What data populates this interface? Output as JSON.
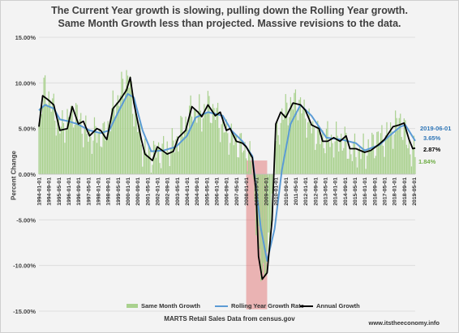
{
  "page": {
    "title_line1": "The Current Year growth is slowing, pulling down the Rolling Year growth.",
    "title_line2": "Same Month Growth less than projected. Massive revisions to the data.",
    "source": "MARTS Retail Sales Data from census.gov",
    "website": "www.itstheeconomy.info"
  },
  "colors": {
    "bar": "#a9d18e",
    "rolling": "#5b9bd5",
    "annual": "#000000",
    "recession": "#e06666",
    "label_rolling": "#2e75b6",
    "label_bar": "#70ad47"
  },
  "annotations": {
    "date": "2019-06-01",
    "rolling_value": "3.65%",
    "annual_value": "2.87%",
    "same_month_value": "1.84%"
  },
  "chart_data": {
    "type": "bar",
    "title": "",
    "xlabel": "",
    "ylabel": "Percent Change",
    "ylim": [
      -15,
      15
    ],
    "yticks": [
      "15.00%",
      "10.00%",
      "5.00%",
      "0.00%",
      "-5.00%",
      "-10.00%",
      "-15.00%"
    ],
    "x_tick_labels": [
      "1994-01-01",
      "1994-09-01",
      "1995-05-01",
      "1996-01-01",
      "1996-09-01",
      "1997-05-01",
      "1998-01-01",
      "1998-09-01",
      "1999-05-01",
      "2000-01-01",
      "2000-09-01",
      "2001-05-01",
      "2002-01-01",
      "2002-09-01",
      "2003-05-01",
      "2004-01-01",
      "2004-09-01",
      "2005-05-01",
      "2006-01-01",
      "2006-09-01",
      "2007-05-01",
      "2008-01-01",
      "2008-09-01",
      "2009-05-01",
      "2010-01-01",
      "2010-09-01",
      "2011-05-01",
      "2012-01-01",
      "2012-09-01",
      "2013-05-01",
      "2014-01-01",
      "2014-09-01",
      "2015-05-01",
      "2016-01-01",
      "2016-09-01",
      "2017-05-01",
      "2018-01-01",
      "2018-09-01",
      "2019-05-01"
    ],
    "x_start": "1994-01",
    "x_end": "2019-06",
    "grid": true,
    "legend_placement": "bottom",
    "shaded_region": [
      "2008-01",
      "2009-06"
    ],
    "series": [
      {
        "name": "Annual Growth",
        "type": "line",
        "points": [
          [
            "1994-01",
            5.2
          ],
          [
            "1994-04",
            8.6
          ],
          [
            "1994-08",
            8.2
          ],
          [
            "1995-01",
            7.6
          ],
          [
            "1995-06",
            4.8
          ],
          [
            "1995-12",
            5.0
          ],
          [
            "1996-04",
            7.4
          ],
          [
            "1996-09",
            5.5
          ],
          [
            "1997-01",
            5.8
          ],
          [
            "1997-06",
            4.2
          ],
          [
            "1997-12",
            5.0
          ],
          [
            "1998-03",
            4.8
          ],
          [
            "1998-08",
            3.8
          ],
          [
            "1999-01",
            7.2
          ],
          [
            "1999-06",
            8.0
          ],
          [
            "1999-12",
            9.2
          ],
          [
            "2000-03",
            10.6
          ],
          [
            "2000-06",
            7.8
          ],
          [
            "2000-12",
            3.8
          ],
          [
            "2001-03",
            2.2
          ],
          [
            "2001-09",
            1.5
          ],
          [
            "2002-01",
            3.0
          ],
          [
            "2002-09",
            2.2
          ],
          [
            "2003-02",
            2.5
          ],
          [
            "2003-06",
            4.0
          ],
          [
            "2003-12",
            4.8
          ],
          [
            "2004-05",
            7.4
          ],
          [
            "2004-10",
            6.8
          ],
          [
            "2005-01",
            6.3
          ],
          [
            "2005-06",
            7.6
          ],
          [
            "2005-12",
            6.4
          ],
          [
            "2006-04",
            6.8
          ],
          [
            "2006-09",
            4.8
          ],
          [
            "2006-12",
            5.0
          ],
          [
            "2007-05",
            3.6
          ],
          [
            "2007-10",
            3.4
          ],
          [
            "2008-01",
            3.0
          ],
          [
            "2008-06",
            1.8
          ],
          [
            "2008-09",
            -2.0
          ],
          [
            "2008-11",
            -9.0
          ],
          [
            "2009-02",
            -11.5
          ],
          [
            "2009-06",
            -10.8
          ],
          [
            "2009-10",
            -5.0
          ],
          [
            "2010-01",
            5.5
          ],
          [
            "2010-05",
            6.8
          ],
          [
            "2010-09",
            6.2
          ],
          [
            "2011-03",
            7.8
          ],
          [
            "2011-09",
            7.6
          ],
          [
            "2012-01",
            7.0
          ],
          [
            "2012-06",
            5.4
          ],
          [
            "2012-12",
            5.0
          ],
          [
            "2013-03",
            3.6
          ],
          [
            "2013-07",
            3.6
          ],
          [
            "2013-12",
            4.0
          ],
          [
            "2014-05",
            3.6
          ],
          [
            "2014-10",
            4.2
          ],
          [
            "2015-01",
            2.8
          ],
          [
            "2015-06",
            2.8
          ],
          [
            "2016-01",
            2.4
          ],
          [
            "2016-06",
            2.6
          ],
          [
            "2016-12",
            3.2
          ],
          [
            "2017-05",
            3.8
          ],
          [
            "2017-12",
            5.2
          ],
          [
            "2018-05",
            5.4
          ],
          [
            "2018-09",
            5.6
          ],
          [
            "2019-01",
            3.8
          ],
          [
            "2019-04",
            2.8
          ],
          [
            "2019-06",
            2.87
          ]
        ]
      },
      {
        "name": "Rolling Year Growth Rate",
        "type": "line",
        "points": [
          [
            "1994-01",
            7.0
          ],
          [
            "1994-06",
            7.6
          ],
          [
            "1995-01",
            7.2
          ],
          [
            "1995-06",
            6.0
          ],
          [
            "1996-01",
            5.8
          ],
          [
            "1996-08",
            5.5
          ],
          [
            "1997-06",
            4.8
          ],
          [
            "1998-03",
            4.5
          ],
          [
            "1998-10",
            4.8
          ],
          [
            "1999-06",
            7.0
          ],
          [
            "2000-01",
            8.8
          ],
          [
            "2000-06",
            8.4
          ],
          [
            "2001-01",
            4.8
          ],
          [
            "2001-08",
            2.5
          ],
          [
            "2002-06",
            2.6
          ],
          [
            "2003-04",
            3.0
          ],
          [
            "2004-01",
            4.2
          ],
          [
            "2004-08",
            6.2
          ],
          [
            "2005-06",
            6.8
          ],
          [
            "2006-06",
            6.4
          ],
          [
            "2007-01",
            4.8
          ],
          [
            "2007-10",
            3.6
          ],
          [
            "2008-06",
            2.0
          ],
          [
            "2009-01",
            -6.0
          ],
          [
            "2009-06",
            -9.5
          ],
          [
            "2009-12",
            -6.0
          ],
          [
            "2010-06",
            0.5
          ],
          [
            "2011-01",
            5.5
          ],
          [
            "2011-09",
            7.6
          ],
          [
            "2012-06",
            6.4
          ],
          [
            "2013-01",
            5.0
          ],
          [
            "2013-06",
            4.0
          ],
          [
            "2014-06",
            3.8
          ],
          [
            "2015-06",
            3.4
          ],
          [
            "2016-01",
            2.6
          ],
          [
            "2017-01",
            3.2
          ],
          [
            "2017-09",
            4.2
          ],
          [
            "2018-06",
            5.2
          ],
          [
            "2018-10",
            5.4
          ],
          [
            "2019-06",
            3.65
          ]
        ]
      },
      {
        "name": "Same Month Growth",
        "type": "bar",
        "points": [
          [
            "1994-01",
            6.0
          ],
          [
            "1994-06",
            9.5
          ],
          [
            "1995-01",
            7.0
          ],
          [
            "1995-06",
            5.0
          ],
          [
            "1996-01",
            6.0
          ],
          [
            "1996-06",
            7.0
          ],
          [
            "1997-01",
            5.0
          ],
          [
            "1997-06",
            4.0
          ],
          [
            "1998-01",
            4.5
          ],
          [
            "1998-06",
            4.0
          ],
          [
            "1999-01",
            7.0
          ],
          [
            "1999-06",
            8.5
          ],
          [
            "2000-01",
            11.0
          ],
          [
            "2000-06",
            7.0
          ],
          [
            "2001-01",
            3.0
          ],
          [
            "2001-06",
            2.0
          ],
          [
            "2002-01",
            2.5
          ],
          [
            "2002-06",
            2.5
          ],
          [
            "2003-01",
            3.0
          ],
          [
            "2003-06",
            4.0
          ],
          [
            "2004-01",
            6.0
          ],
          [
            "2004-06",
            7.0
          ],
          [
            "2005-01",
            6.5
          ],
          [
            "2005-06",
            7.5
          ],
          [
            "2006-01",
            6.5
          ],
          [
            "2006-06",
            5.0
          ],
          [
            "2007-01",
            4.0
          ],
          [
            "2007-06",
            3.5
          ],
          [
            "2008-01",
            2.5
          ],
          [
            "2008-06",
            1.0
          ],
          [
            "2008-09",
            -5.0
          ],
          [
            "2009-01",
            -10.5
          ],
          [
            "2009-06",
            -10.0
          ],
          [
            "2010-01",
            3.0
          ],
          [
            "2010-06",
            6.5
          ],
          [
            "2011-01",
            7.5
          ],
          [
            "2011-06",
            8.0
          ],
          [
            "2012-01",
            6.5
          ],
          [
            "2012-06",
            5.0
          ],
          [
            "2013-01",
            4.0
          ],
          [
            "2013-06",
            4.0
          ],
          [
            "2014-01",
            3.5
          ],
          [
            "2014-06",
            4.0
          ],
          [
            "2015-01",
            2.5
          ],
          [
            "2015-06",
            2.5
          ],
          [
            "2016-01",
            2.5
          ],
          [
            "2016-06",
            3.0
          ],
          [
            "2017-01",
            4.0
          ],
          [
            "2017-06",
            4.0
          ],
          [
            "2018-01",
            5.0
          ],
          [
            "2018-06",
            6.0
          ],
          [
            "2019-01",
            3.0
          ],
          [
            "2019-06",
            1.84
          ]
        ]
      }
    ]
  }
}
